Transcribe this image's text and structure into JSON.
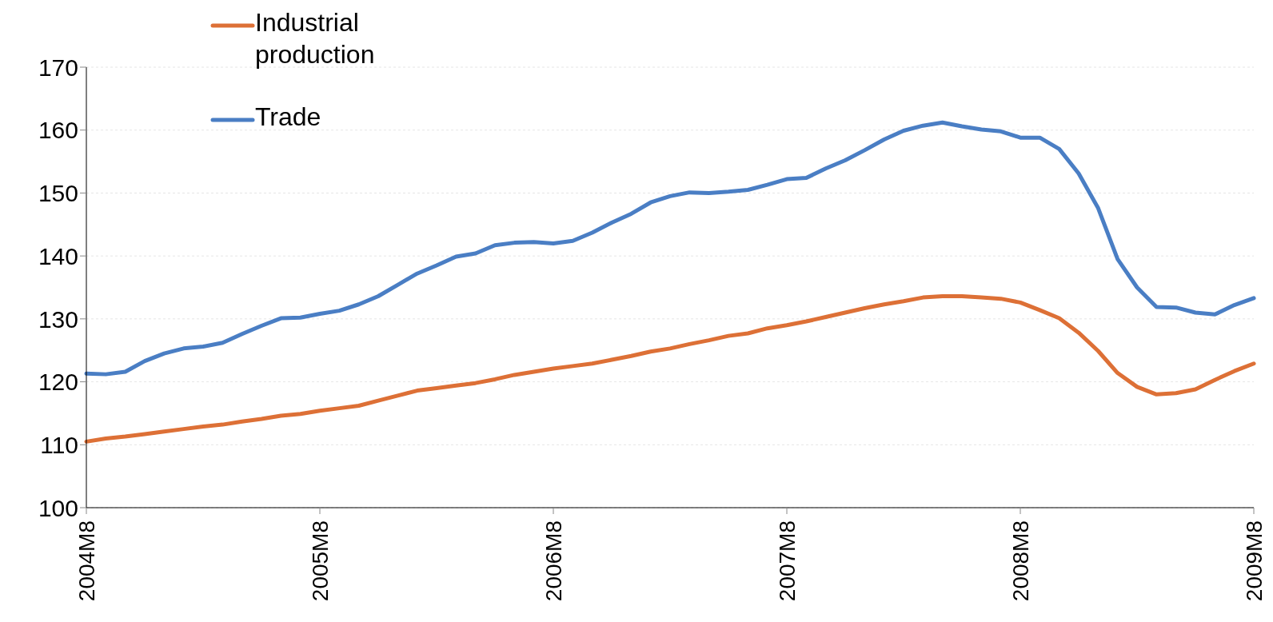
{
  "chart_data": {
    "type": "line",
    "categories": [
      "2004M8",
      null,
      null,
      null,
      null,
      null,
      null,
      null,
      null,
      null,
      null,
      null,
      "2005M8",
      null,
      null,
      null,
      null,
      null,
      null,
      null,
      null,
      null,
      null,
      null,
      "2006M8",
      null,
      null,
      null,
      null,
      null,
      null,
      null,
      null,
      null,
      null,
      null,
      "2007M8",
      null,
      null,
      null,
      null,
      null,
      null,
      null,
      null,
      null,
      null,
      null,
      "2008M8",
      null,
      null,
      null,
      null,
      null,
      null,
      null,
      null,
      null,
      null,
      null,
      "2009M8"
    ],
    "series": [
      {
        "name": "Industrial production",
        "color": "#dd7036",
        "values": [
          110.5,
          111.0,
          111.3,
          111.7,
          112.1,
          112.5,
          112.9,
          113.2,
          113.7,
          114.1,
          114.6,
          114.9,
          115.4,
          115.8,
          116.2,
          117.0,
          117.8,
          118.6,
          119.0,
          119.4,
          119.8,
          120.4,
          121.1,
          121.6,
          122.1,
          122.5,
          122.9,
          123.5,
          124.1,
          124.8,
          125.3,
          126.0,
          126.6,
          127.3,
          127.7,
          128.5,
          129.0,
          129.6,
          130.3,
          131.0,
          131.7,
          132.3,
          132.8,
          133.4,
          133.6,
          133.6,
          133.4,
          133.2,
          132.6,
          131.4,
          130.1,
          127.8,
          124.9,
          121.4,
          119.2,
          118.0,
          118.2,
          118.8,
          120.3,
          121.7,
          122.9
        ]
      },
      {
        "name": "Trade",
        "color": "#4a7ec4",
        "values": [
          121.3,
          121.2,
          121.6,
          123.3,
          124.5,
          125.3,
          125.6,
          126.2,
          127.6,
          128.9,
          130.1,
          130.2,
          130.8,
          131.3,
          132.3,
          133.6,
          135.4,
          137.2,
          138.5,
          139.9,
          140.4,
          141.7,
          142.1,
          142.2,
          142.0,
          142.4,
          143.7,
          145.3,
          146.7,
          148.5,
          149.5,
          150.1,
          150.0,
          150.2,
          150.5,
          151.3,
          152.2,
          152.4,
          153.9,
          155.2,
          156.8,
          158.5,
          159.9,
          160.7,
          161.2,
          160.6,
          160.1,
          159.8,
          158.8,
          158.8,
          157.0,
          153.1,
          147.6,
          139.5,
          135.0,
          131.9,
          131.8,
          131.0,
          130.7,
          132.2,
          133.3
        ]
      }
    ],
    "ylim": [
      100,
      170
    ],
    "yticks": [
      100,
      110,
      120,
      130,
      140,
      150,
      160,
      170
    ],
    "grid": "y",
    "legend": "top left",
    "marker": "none",
    "line_style": "solid"
  }
}
